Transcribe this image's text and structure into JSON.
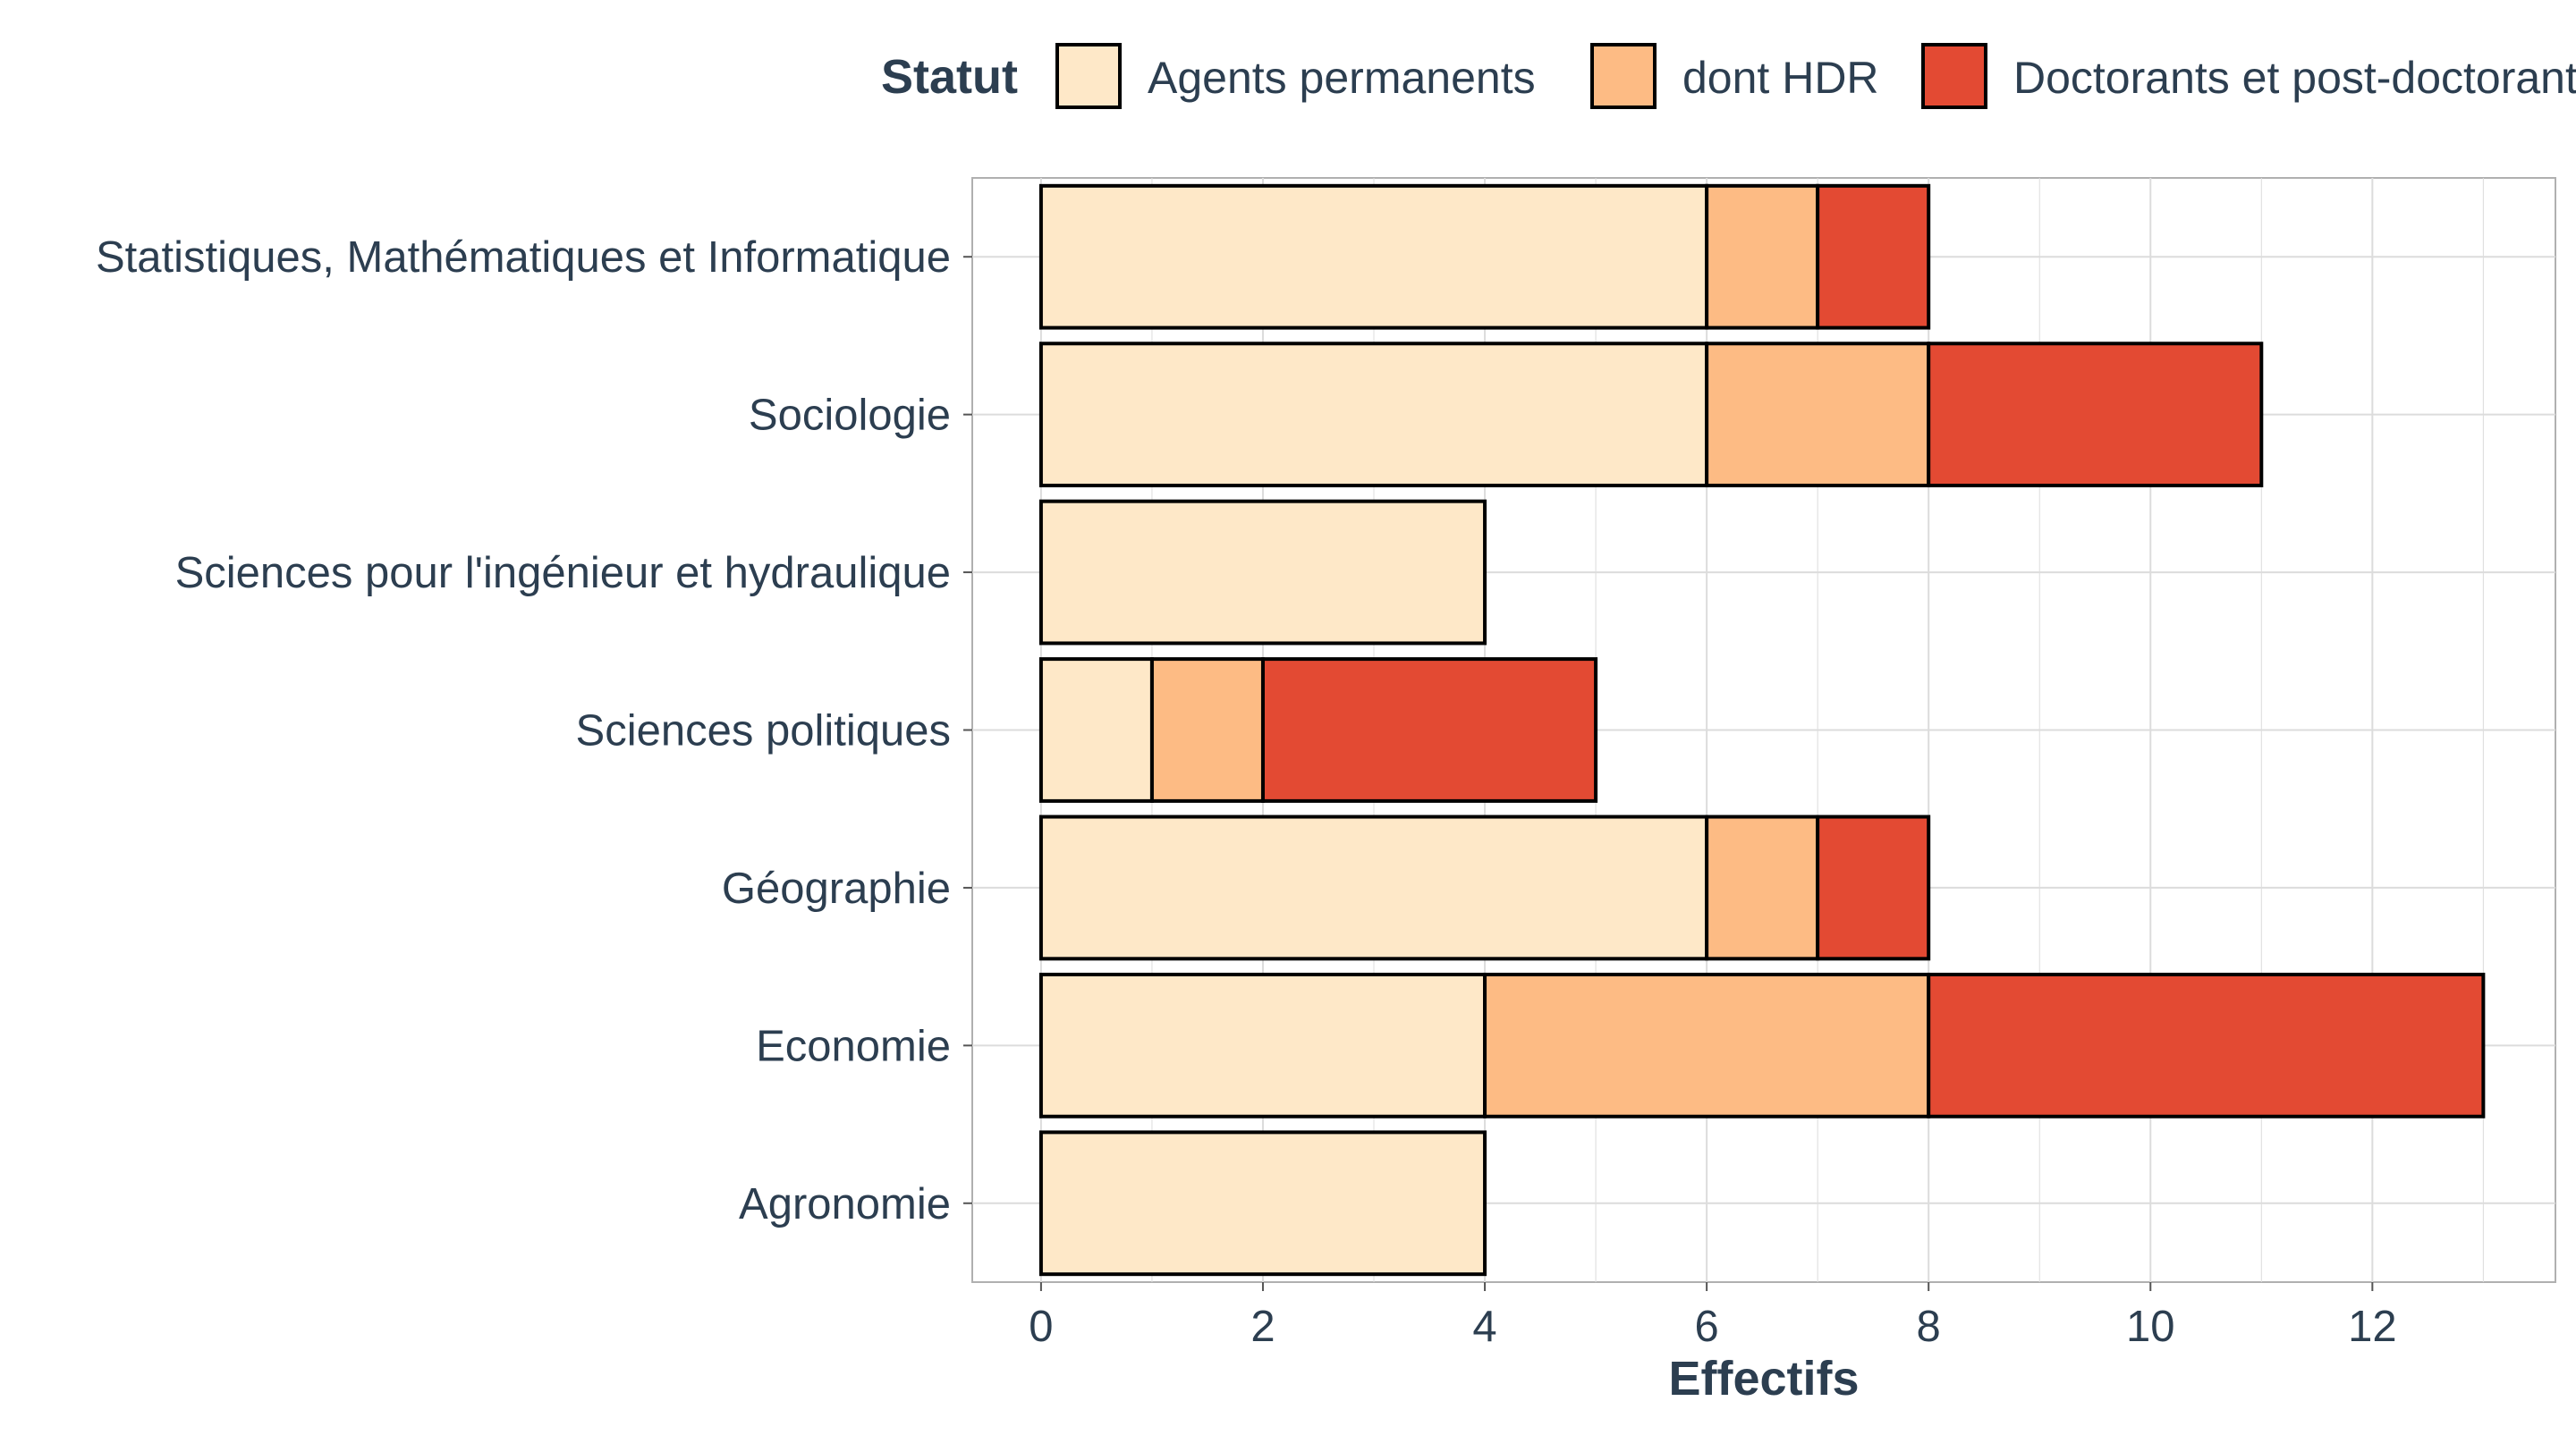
{
  "chart_data": {
    "type": "bar",
    "orientation": "horizontal",
    "stacked": true,
    "xlabel": "Effectifs",
    "ylabel": "",
    "xlim": [
      -0.62,
      13.65
    ],
    "x_ticks": [
      0,
      2,
      4,
      6,
      8,
      10,
      12
    ],
    "grid": true,
    "legend_title": "Statut",
    "legend_position": "top",
    "categories": [
      "Statistiques, Mathématiques et Informatique",
      "Sociologie",
      "Sciences pour l'ingénieur et hydraulique",
      "Sciences politiques",
      "Géographie",
      "Economie",
      "Agronomie"
    ],
    "series": [
      {
        "name": "Agents permanents",
        "color": "#fee8c8",
        "values": [
          6,
          6,
          4,
          1,
          6,
          4,
          4
        ]
      },
      {
        "name": "dont HDR",
        "color": "#fdbb84",
        "values": [
          1,
          2,
          0,
          1,
          1,
          4,
          0
        ]
      },
      {
        "name": "Doctorants et post-doctorants",
        "color": "#e34a33",
        "values": [
          1,
          3,
          0,
          3,
          1,
          5,
          0
        ]
      }
    ]
  }
}
